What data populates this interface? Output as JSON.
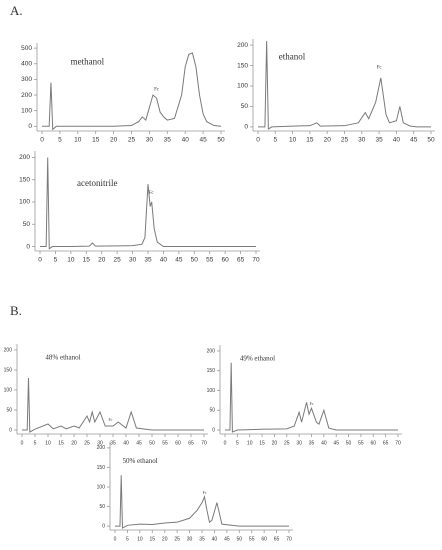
{
  "panels": [
    "A.",
    "B."
  ],
  "chart_data": [
    {
      "type": "line",
      "annotations": [
        {
          "text": "methanol",
          "x": 8,
          "y": 410
        },
        {
          "text": "Fc",
          "x": 32,
          "y": 235
        }
      ],
      "x": [
        0,
        2,
        2.5,
        3,
        4,
        10,
        20,
        25,
        27,
        28,
        29,
        30,
        31,
        32,
        33,
        34,
        35,
        37,
        39,
        40,
        41,
        42,
        43,
        44,
        45,
        46,
        48,
        50
      ],
      "series": [
        {
          "color": "#7a7a7a",
          "values": [
            0,
            0,
            280,
            -20,
            0,
            0,
            0,
            5,
            30,
            60,
            40,
            120,
            200,
            180,
            90,
            60,
            40,
            50,
            200,
            380,
            460,
            470,
            380,
            200,
            80,
            30,
            5,
            0
          ]
        }
      ],
      "xlim": [
        0,
        50
      ],
      "ylim": [
        -30,
        520
      ],
      "xticks": [
        0,
        5,
        10,
        15,
        20,
        25,
        30,
        35,
        40,
        45,
        50
      ],
      "yticks": [
        0,
        100,
        200,
        300,
        400,
        500
      ]
    },
    {
      "type": "line",
      "annotations": [
        {
          "text": "ethanol",
          "x": 6,
          "y": 170
        },
        {
          "text": "Fc",
          "x": 35,
          "y": 145
        }
      ],
      "x": [
        0,
        2,
        2.5,
        3,
        4,
        10,
        15,
        17,
        18,
        25,
        29,
        31,
        32,
        34,
        35.5,
        37,
        38,
        40,
        41,
        42,
        44,
        46,
        50
      ],
      "series": [
        {
          "color": "#7a7a7a",
          "values": [
            0,
            0,
            210,
            -5,
            0,
            2,
            3,
            10,
            2,
            3,
            10,
            35,
            20,
            60,
            120,
            30,
            10,
            15,
            50,
            10,
            2,
            0,
            0
          ]
        }
      ],
      "xlim": [
        0,
        50
      ],
      "ylim": [
        -10,
        210
      ],
      "xticks": [
        0,
        5,
        10,
        15,
        20,
        25,
        30,
        35,
        40,
        45,
        50
      ],
      "yticks": [
        0,
        50,
        100,
        150,
        200
      ]
    },
    {
      "type": "line",
      "annotations": [
        {
          "text": "acetonitrile",
          "x": 12,
          "y": 140
        },
        {
          "text": "Fc",
          "x": 36,
          "y": 120
        }
      ],
      "x": [
        0,
        2,
        2.5,
        3,
        4,
        10,
        16,
        17,
        18,
        30,
        33,
        34,
        35,
        35.7,
        36.2,
        37,
        38,
        40,
        45,
        70
      ],
      "series": [
        {
          "color": "#7a7a7a",
          "values": [
            0,
            0,
            200,
            -5,
            0,
            0,
            1,
            8,
            1,
            2,
            5,
            20,
            140,
            90,
            100,
            40,
            10,
            0,
            0,
            0
          ]
        }
      ],
      "xlim": [
        0,
        70
      ],
      "ylim": [
        -10,
        210
      ],
      "xticks": [
        0,
        5,
        10,
        15,
        20,
        25,
        30,
        35,
        40,
        45,
        50,
        55,
        60,
        65,
        70
      ],
      "yticks": [
        0,
        50,
        100,
        150,
        200
      ]
    },
    {
      "type": "line",
      "annotations": [
        {
          "text": "48% ethanol",
          "x": 9,
          "y": 180
        },
        {
          "text": "Fc",
          "x": 34,
          "y": 25
        }
      ],
      "x": [
        0,
        2,
        2.5,
        3,
        5,
        10,
        12,
        15,
        17,
        20,
        22,
        25,
        26,
        27,
        28,
        30,
        32,
        35,
        37,
        40,
        42,
        44,
        50,
        70
      ],
      "series": [
        {
          "color": "#7a7a7a",
          "values": [
            0,
            0,
            130,
            -5,
            2,
            15,
            3,
            10,
            3,
            10,
            5,
            35,
            20,
            45,
            20,
            45,
            10,
            10,
            20,
            5,
            45,
            5,
            0,
            0
          ]
        }
      ],
      "xlim": [
        0,
        70
      ],
      "ylim": [
        -10,
        210
      ],
      "xticks": [
        0,
        5,
        10,
        15,
        20,
        25,
        30,
        35,
        40,
        45,
        50,
        55,
        60,
        65,
        70
      ],
      "yticks": [
        0,
        50,
        100,
        150,
        200
      ]
    },
    {
      "type": "line",
      "annotations": [
        {
          "text": "49% ethanol",
          "x": 6,
          "y": 180
        },
        {
          "text": "Fc",
          "x": 35,
          "y": 65
        }
      ],
      "x": [
        0,
        2,
        2.5,
        3,
        5,
        15,
        25,
        28,
        30,
        31,
        33,
        34,
        35,
        37,
        38,
        40,
        42,
        45,
        50,
        70
      ],
      "series": [
        {
          "color": "#7a7a7a",
          "values": [
            0,
            0,
            170,
            -5,
            0,
            2,
            3,
            10,
            45,
            20,
            70,
            40,
            55,
            20,
            15,
            50,
            5,
            0,
            0,
            0
          ]
        }
      ],
      "xlim": [
        0,
        70
      ],
      "ylim": [
        -10,
        210
      ],
      "xticks": [
        0,
        5,
        10,
        15,
        20,
        25,
        30,
        35,
        40,
        45,
        50,
        55,
        60,
        65,
        70
      ],
      "yticks": [
        0,
        50,
        100,
        150,
        200
      ]
    },
    {
      "type": "line",
      "annotations": [
        {
          "text": "50% ethanol",
          "x": 3,
          "y": 165
        },
        {
          "text": "Fc",
          "x": 36,
          "y": 85
        }
      ],
      "x": [
        0,
        2,
        2.5,
        3,
        5,
        10,
        15,
        20,
        25,
        30,
        33,
        35,
        36,
        37,
        38,
        39,
        41,
        43,
        50,
        70
      ],
      "series": [
        {
          "color": "#7a7a7a",
          "values": [
            0,
            0,
            130,
            -5,
            2,
            5,
            4,
            8,
            10,
            20,
            40,
            60,
            75,
            40,
            10,
            15,
            60,
            5,
            0,
            0
          ]
        }
      ],
      "xlim": [
        0,
        70
      ],
      "ylim": [
        -10,
        210
      ],
      "xticks": [
        0,
        5,
        10,
        15,
        20,
        25,
        30,
        35,
        40,
        45,
        50,
        55,
        60,
        65,
        70
      ],
      "yticks": [
        0,
        50,
        100,
        150,
        200
      ]
    }
  ]
}
